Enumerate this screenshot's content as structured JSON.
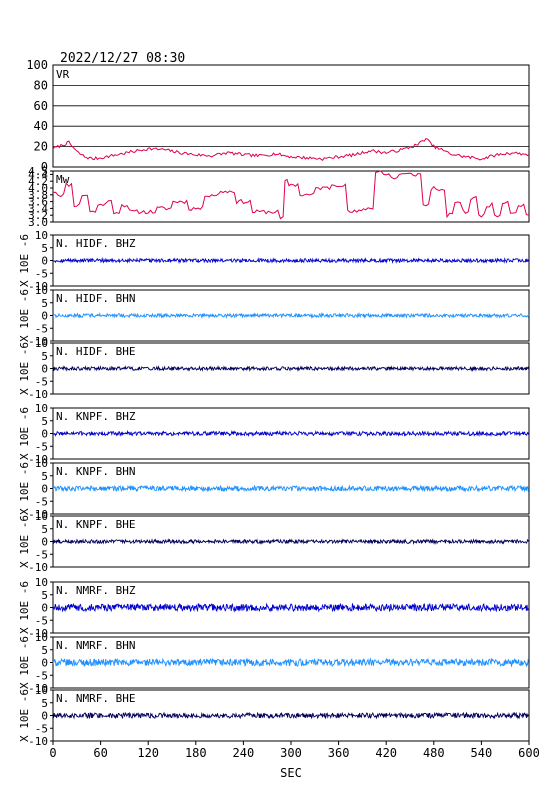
{
  "chart_data": {
    "type": "line",
    "title": "2022/12/27 08:30",
    "xlabel": "SEC",
    "x_range": [
      0,
      600
    ],
    "x_ticks": [
      0,
      60,
      120,
      180,
      240,
      300,
      360,
      420,
      480,
      540,
      600
    ],
    "vr_panel": {
      "name": "VR",
      "ylim": [
        0,
        100
      ],
      "ticks": [
        0,
        20,
        40,
        60,
        80,
        100
      ],
      "grid": true,
      "color": "#e0004c",
      "x": [
        0,
        10,
        20,
        30,
        40,
        50,
        60,
        80,
        100,
        120,
        140,
        160,
        180,
        200,
        220,
        240,
        260,
        280,
        300,
        320,
        340,
        360,
        380,
        400,
        420,
        440,
        460,
        470,
        480,
        490,
        500,
        520,
        540,
        560,
        580,
        600
      ],
      "values": [
        18,
        21,
        24,
        15,
        10,
        8,
        9,
        12,
        15,
        18,
        17,
        14,
        12,
        11,
        14,
        12,
        11,
        13,
        10,
        9,
        8,
        10,
        12,
        16,
        14,
        17,
        22,
        28,
        20,
        17,
        13,
        10,
        8,
        12,
        14,
        12
      ]
    },
    "mw_panel": {
      "name": "Mw",
      "ylim": [
        3.0,
        4.5
      ],
      "ticks": [
        3.0,
        3.2,
        3.4,
        3.6,
        3.8,
        4.0,
        4.2,
        4.4,
        4.5
      ],
      "tick_labels": [
        "3.0",
        "3.2",
        "3.4",
        "3.6",
        "3.8",
        "4.0",
        "4.2",
        "4.4",
        "4.5"
      ],
      "color": "#e0004c",
      "x": [
        0,
        10,
        20,
        30,
        40,
        50,
        60,
        70,
        80,
        90,
        100,
        120,
        140,
        160,
        180,
        200,
        220,
        240,
        260,
        280,
        290,
        295,
        300,
        320,
        340,
        360,
        380,
        400,
        410,
        420,
        430,
        440,
        460,
        470,
        480,
        490,
        500,
        510,
        520,
        530,
        540,
        550,
        560,
        570,
        580,
        590,
        600
      ],
      "values": [
        3.9,
        3.8,
        4.1,
        3.5,
        3.8,
        3.3,
        3.5,
        3.6,
        3.3,
        3.5,
        3.3,
        3.3,
        3.4,
        3.6,
        3.4,
        3.8,
        3.9,
        3.6,
        3.3,
        3.3,
        3.1,
        4.2,
        4.1,
        3.8,
        4.0,
        4.1,
        3.3,
        3.4,
        4.5,
        4.4,
        4.3,
        4.4,
        4.4,
        3.5,
        4.0,
        3.9,
        3.2,
        3.6,
        3.3,
        3.7,
        3.2,
        3.5,
        3.2,
        3.6,
        3.3,
        3.5,
        3.2
      ]
    },
    "trace_axis": {
      "ylabel": "X 10E -6",
      "ylim": [
        -10,
        10
      ],
      "ticks": [
        -10,
        -5,
        0,
        5,
        10
      ]
    },
    "traces": [
      {
        "name": "N. HIDF. BHZ",
        "color": "#0000cc",
        "amplitude": 0.7
      },
      {
        "name": "N. HIDF. BHN",
        "color": "#1e90ff",
        "amplitude": 0.7
      },
      {
        "name": "N. HIDF. BHE",
        "color": "#00005a",
        "amplitude": 0.7
      },
      {
        "name": "N. KNPF. BHZ",
        "color": "#0000cc",
        "amplitude": 0.8
      },
      {
        "name": "N. KNPF. BHN",
        "color": "#1e90ff",
        "amplitude": 1.0
      },
      {
        "name": "N. KNPF. BHE",
        "color": "#00005a",
        "amplitude": 0.7
      },
      {
        "name": "N. NMRF. BHZ",
        "color": "#0000cc",
        "amplitude": 1.4
      },
      {
        "name": "N. NMRF. BHN",
        "color": "#1e90ff",
        "amplitude": 1.4
      },
      {
        "name": "N. NMRF. BHE",
        "color": "#00005a",
        "amplitude": 1.0
      }
    ]
  }
}
